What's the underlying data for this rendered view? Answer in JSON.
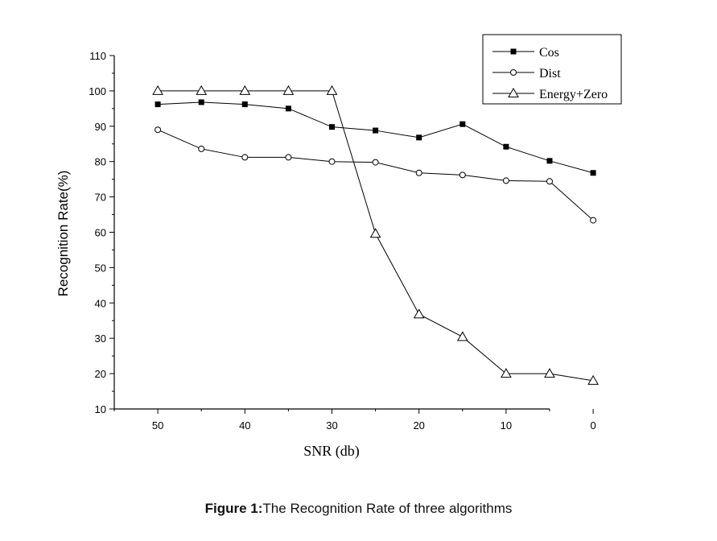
{
  "chart_data": {
    "type": "line",
    "xlabel": "SNR (db)",
    "ylabel": "Recognition Rate(%)",
    "x": [
      50,
      45,
      40,
      35,
      30,
      25,
      20,
      15,
      10,
      5,
      0
    ],
    "xlim": [
      55,
      5
    ],
    "ylim": [
      10,
      110
    ],
    "x_ticks": [
      50,
      40,
      30,
      20,
      10,
      0
    ],
    "y_ticks": [
      10,
      20,
      30,
      40,
      50,
      60,
      70,
      80,
      90,
      100,
      110
    ],
    "x_axis_reversed": true,
    "grid": false,
    "legend_position": "top-right",
    "series": [
      {
        "name": "Cos",
        "marker": "filled-square",
        "values": [
          96.2,
          96.8,
          96.2,
          95.0,
          89.8,
          88.8,
          86.8,
          90.6,
          84.2,
          80.2,
          76.8
        ]
      },
      {
        "name": "Dist",
        "marker": "open-circle",
        "values": [
          89.0,
          83.6,
          81.2,
          81.2,
          80.0,
          79.8,
          76.8,
          76.2,
          74.6,
          74.4,
          63.4
        ]
      },
      {
        "name": "Energy+Zero",
        "marker": "open-triangle",
        "values": [
          100,
          100,
          100,
          100,
          100,
          59.6,
          36.8,
          30.4,
          20.0,
          20.0,
          18.0
        ]
      }
    ]
  },
  "caption": {
    "label": "Figure 1:",
    "text": "The Recognition Rate of three algorithms"
  }
}
